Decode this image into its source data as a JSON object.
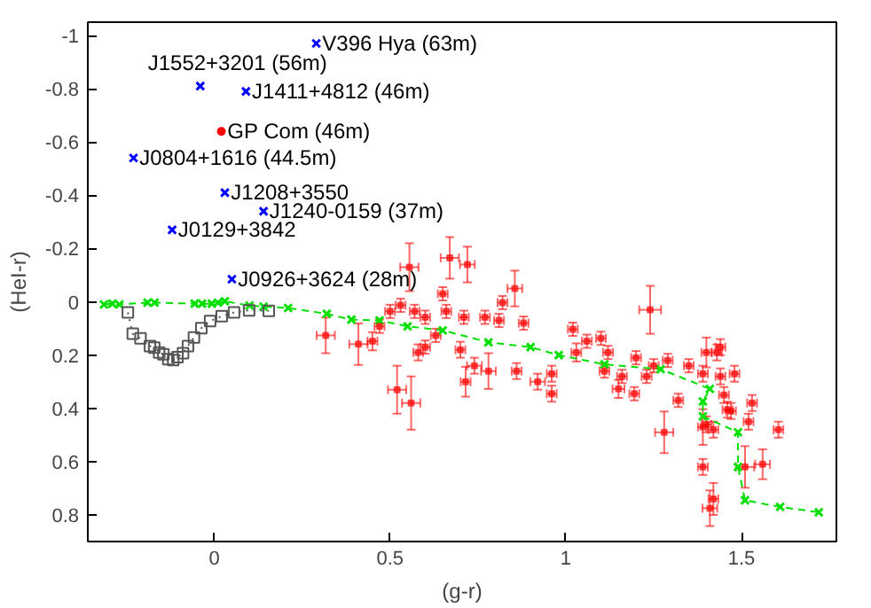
{
  "chart_data": {
    "type": "scatter",
    "xlabel": "(g-r)",
    "ylabel": "(HeI-r)",
    "xlim": [
      -0.36,
      1.77
    ],
    "ylim": [
      0.9,
      -1.05
    ],
    "xticks": [
      0,
      0.5,
      1,
      1.5
    ],
    "yticks": [
      -1,
      -0.8,
      -0.6,
      -0.4,
      -0.2,
      0,
      0.2,
      0.4,
      0.6,
      0.8
    ],
    "grid": false,
    "series": [
      {
        "type": "line",
        "color": "#00e000",
        "marker": "cross",
        "line_style": "dashed",
        "x": [
          -0.314,
          -0.29,
          -0.27,
          -0.19,
          -0.17,
          -0.056,
          -0.035,
          -0.007,
          0.01,
          0.03,
          0.1,
          0.14,
          0.21,
          0.32,
          0.39,
          0.47,
          0.55,
          0.65,
          0.78,
          0.9,
          0.98,
          1.11,
          1.27,
          1.41,
          1.39,
          1.39,
          1.49,
          1.49,
          1.51,
          1.61,
          1.72
        ],
        "values": [
          0.01,
          0.007,
          0.01,
          0.003,
          0.003,
          0.007,
          0.007,
          0.007,
          0.003,
          -0.002,
          0.014,
          0.018,
          0.023,
          0.045,
          0.067,
          0.07,
          0.092,
          0.107,
          0.152,
          0.17,
          0.2,
          0.235,
          0.253,
          0.327,
          0.374,
          0.43,
          0.49,
          0.62,
          0.745,
          0.77,
          0.79
        ]
      },
      {
        "type": "line",
        "color": "#555555",
        "marker": "square",
        "line_style": "dotted",
        "x": [
          -0.246,
          -0.232,
          -0.21,
          -0.183,
          -0.171,
          -0.157,
          -0.145,
          -0.131,
          -0.117,
          -0.105,
          -0.089,
          -0.075,
          -0.058,
          -0.037,
          -0.012,
          0.021,
          0.056,
          0.099,
          0.155
        ],
        "values": [
          0.04,
          0.12,
          0.137,
          0.166,
          0.172,
          0.19,
          0.197,
          0.215,
          0.219,
          0.208,
          0.193,
          0.166,
          0.134,
          0.099,
          0.072,
          0.054,
          0.04,
          0.032,
          0.034
        ]
      },
      {
        "color": "#ff0000",
        "marker": "square",
        "x": [
          0.317,
          0.41,
          0.45,
          0.47,
          0.52,
          0.56,
          0.555,
          0.67,
          0.72,
          0.855,
          0.53,
          0.57,
          0.6,
          0.66,
          0.71,
          0.77,
          0.81,
          0.88,
          0.58,
          0.6,
          0.63,
          0.7,
          0.74,
          0.78,
          0.715,
          0.86,
          0.92,
          0.96,
          0.96,
          1.02,
          1.03,
          0.82,
          0.65,
          0.5,
          1.06,
          1.1,
          1.12,
          1.11,
          1.15,
          1.16,
          1.195,
          1.2,
          1.23,
          1.24,
          1.25,
          1.29,
          1.28,
          1.32,
          1.35,
          1.39,
          1.4,
          1.43,
          1.44,
          1.45,
          1.47,
          1.4,
          1.39,
          1.42,
          1.39,
          1.41,
          1.42,
          1.48,
          1.52,
          1.53,
          1.51,
          1.56,
          1.605,
          1.46,
          1.44
        ],
        "values": [
          0.126,
          0.159,
          0.148,
          0.092,
          0.33,
          0.38,
          -0.13,
          -0.165,
          -0.14,
          -0.05,
          0.013,
          0.036,
          0.058,
          0.036,
          0.058,
          0.058,
          0.07,
          0.08,
          0.19,
          0.17,
          0.126,
          0.18,
          0.24,
          0.26,
          0.3,
          0.26,
          0.3,
          0.27,
          0.345,
          0.103,
          0.19,
          0.003,
          -0.03,
          0.036,
          0.148,
          0.137,
          0.19,
          0.26,
          0.327,
          0.28,
          0.345,
          0.21,
          0.28,
          0.03,
          0.24,
          0.22,
          0.49,
          0.37,
          0.24,
          0.27,
          0.19,
          0.19,
          0.28,
          0.35,
          0.41,
          0.46,
          0.47,
          0.48,
          0.62,
          0.775,
          0.74,
          0.27,
          0.45,
          0.38,
          0.62,
          0.61,
          0.48,
          0.405,
          0.17
        ],
        "errors": [
          0.067,
          0.078,
          0.034,
          0.025,
          0.09,
          0.1,
          0.09,
          0.078,
          0.067,
          0.067,
          0.025,
          0.025,
          0.025,
          0.025,
          0.025,
          0.025,
          0.025,
          0.025,
          0.03,
          0.025,
          0.025,
          0.03,
          0.03,
          0.067,
          0.056,
          0.03,
          0.03,
          0.03,
          0.03,
          0.025,
          0.034,
          0.025,
          0.025,
          0.025,
          0.025,
          0.025,
          0.025,
          0.025,
          0.034,
          0.025,
          0.025,
          0.025,
          0.025,
          0.09,
          0.025,
          0.025,
          0.078,
          0.025,
          0.025,
          0.03,
          0.056,
          0.03,
          0.03,
          0.03,
          0.03,
          0.03,
          0.067,
          0.03,
          0.03,
          0.067,
          0.06,
          0.03,
          0.03,
          0.03,
          0.078,
          0.056,
          0.03,
          0.03,
          0.03
        ],
        "xerrors": [
          0.026,
          0.026,
          0.014,
          0.014,
          0.026,
          0.026,
          0.026,
          0.026,
          0.021,
          0.021,
          0.014,
          0.014,
          0.014,
          0.014,
          0.014,
          0.014,
          0.014,
          0.014,
          0.014,
          0.014,
          0.014,
          0.014,
          0.021,
          0.021,
          0.014,
          0.014,
          0.021,
          0.014,
          0.014,
          0.014,
          0.014,
          0.014,
          0.014,
          0.014,
          0.014,
          0.014,
          0.014,
          0.014,
          0.017,
          0.014,
          0.014,
          0.014,
          0.014,
          0.031,
          0.014,
          0.014,
          0.026,
          0.014,
          0.014,
          0.014,
          0.014,
          0.014,
          0.014,
          0.014,
          0.014,
          0.014,
          0.014,
          0.014,
          0.014,
          0.021,
          0.014,
          0.014,
          0.014,
          0.014,
          0.026,
          0.021,
          0.014,
          0.014,
          0.014
        ]
      },
      {
        "color": "#0000ff",
        "marker": "cross",
        "x": [
          0.29,
          -0.04,
          0.09,
          -0.23,
          0.03,
          0.14,
          -0.12,
          0.05
        ],
        "values": [
          -0.97,
          -0.81,
          -0.79,
          -0.54,
          -0.41,
          -0.34,
          -0.27,
          -0.085
        ]
      },
      {
        "color": "#ff0000",
        "marker": "circle",
        "x": [
          0.02
        ],
        "values": [
          -0.64
        ]
      }
    ],
    "annotations": [
      {
        "text": "V396 Hya (63m)",
        "x": 0.29,
        "y": -0.97
      },
      {
        "text": "J1552+3201 (56m)",
        "x": -0.04,
        "y": -0.81
      },
      {
        "text": "J1411+4812 (46m)",
        "x": 0.09,
        "y": -0.79
      },
      {
        "text": "GP Com (46m)",
        "x": 0.02,
        "y": -0.64
      },
      {
        "text": "J0804+1616 (44.5m)",
        "x": -0.23,
        "y": -0.54
      },
      {
        "text": "J1208+3550",
        "x": 0.03,
        "y": -0.41
      },
      {
        "text": "J1240-0159 (37m)",
        "x": 0.14,
        "y": -0.34
      },
      {
        "text": "J0129+3842",
        "x": -0.12,
        "y": -0.27
      },
      {
        "text": "J0926+3624 (28m)",
        "x": 0.05,
        "y": -0.085
      }
    ]
  }
}
